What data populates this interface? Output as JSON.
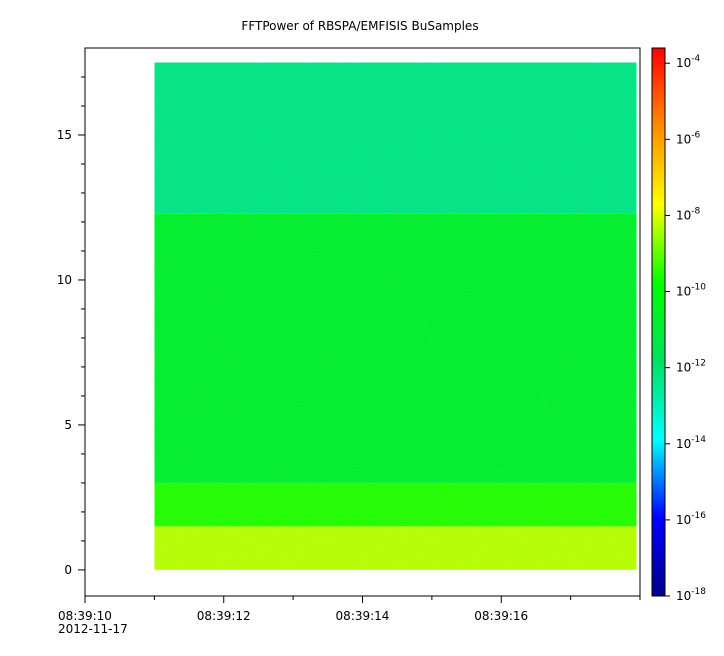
{
  "chart_data": {
    "type": "heatmap",
    "title": "FFTPower of RBSPA/EMFISIS  BuSamples",
    "x_range_seconds": [
      10,
      18
    ],
    "x_ticks": [
      {
        "sec": 10,
        "label": "08:39:10"
      },
      {
        "sec": 12,
        "label": "08:39:12"
      },
      {
        "sec": 14,
        "label": "08:39:14"
      },
      {
        "sec": 16,
        "label": "08:39:16"
      }
    ],
    "x_date_label": "2012-11-17",
    "y_range": [
      -0.9,
      18.0
    ],
    "y_ticks": [
      0,
      5,
      10,
      15
    ],
    "data_extent": {
      "x": [
        11.0,
        17.95
      ],
      "y": [
        0,
        17.5
      ]
    },
    "colorbar": {
      "scale": "log",
      "range_exponent": [
        -18,
        -3.6
      ],
      "ticks": [
        {
          "exp": -4,
          "base": "10",
          "sup": "-4"
        },
        {
          "exp": -6,
          "base": "10",
          "sup": "-6"
        },
        {
          "exp": -8,
          "base": "10",
          "sup": "-8"
        },
        {
          "exp": -10,
          "base": "10",
          "sup": "-10"
        },
        {
          "exp": -12,
          "base": "10",
          "sup": "-12"
        },
        {
          "exp": -14,
          "base": "10",
          "sup": "-14"
        },
        {
          "exp": -16,
          "base": "10",
          "sup": "-16"
        },
        {
          "exp": -18,
          "base": "10",
          "sup": "-18"
        }
      ],
      "colors": [
        "#00008b",
        "#0000ff",
        "#00ffff",
        "#00e060",
        "#00ff00",
        "#ffff00",
        "#ff8c00",
        "#ff0000"
      ]
    },
    "bands": [
      {
        "y": [
          12.3,
          17.5
        ],
        "level_exp": -12.3
      },
      {
        "y": [
          3.0,
          12.3
        ],
        "level_exp": -10.7
      },
      {
        "y": [
          1.5,
          3.0
        ],
        "level_exp": -9.5
      },
      {
        "y": [
          0,
          1.5
        ],
        "level_exp": -8.3
      }
    ]
  }
}
